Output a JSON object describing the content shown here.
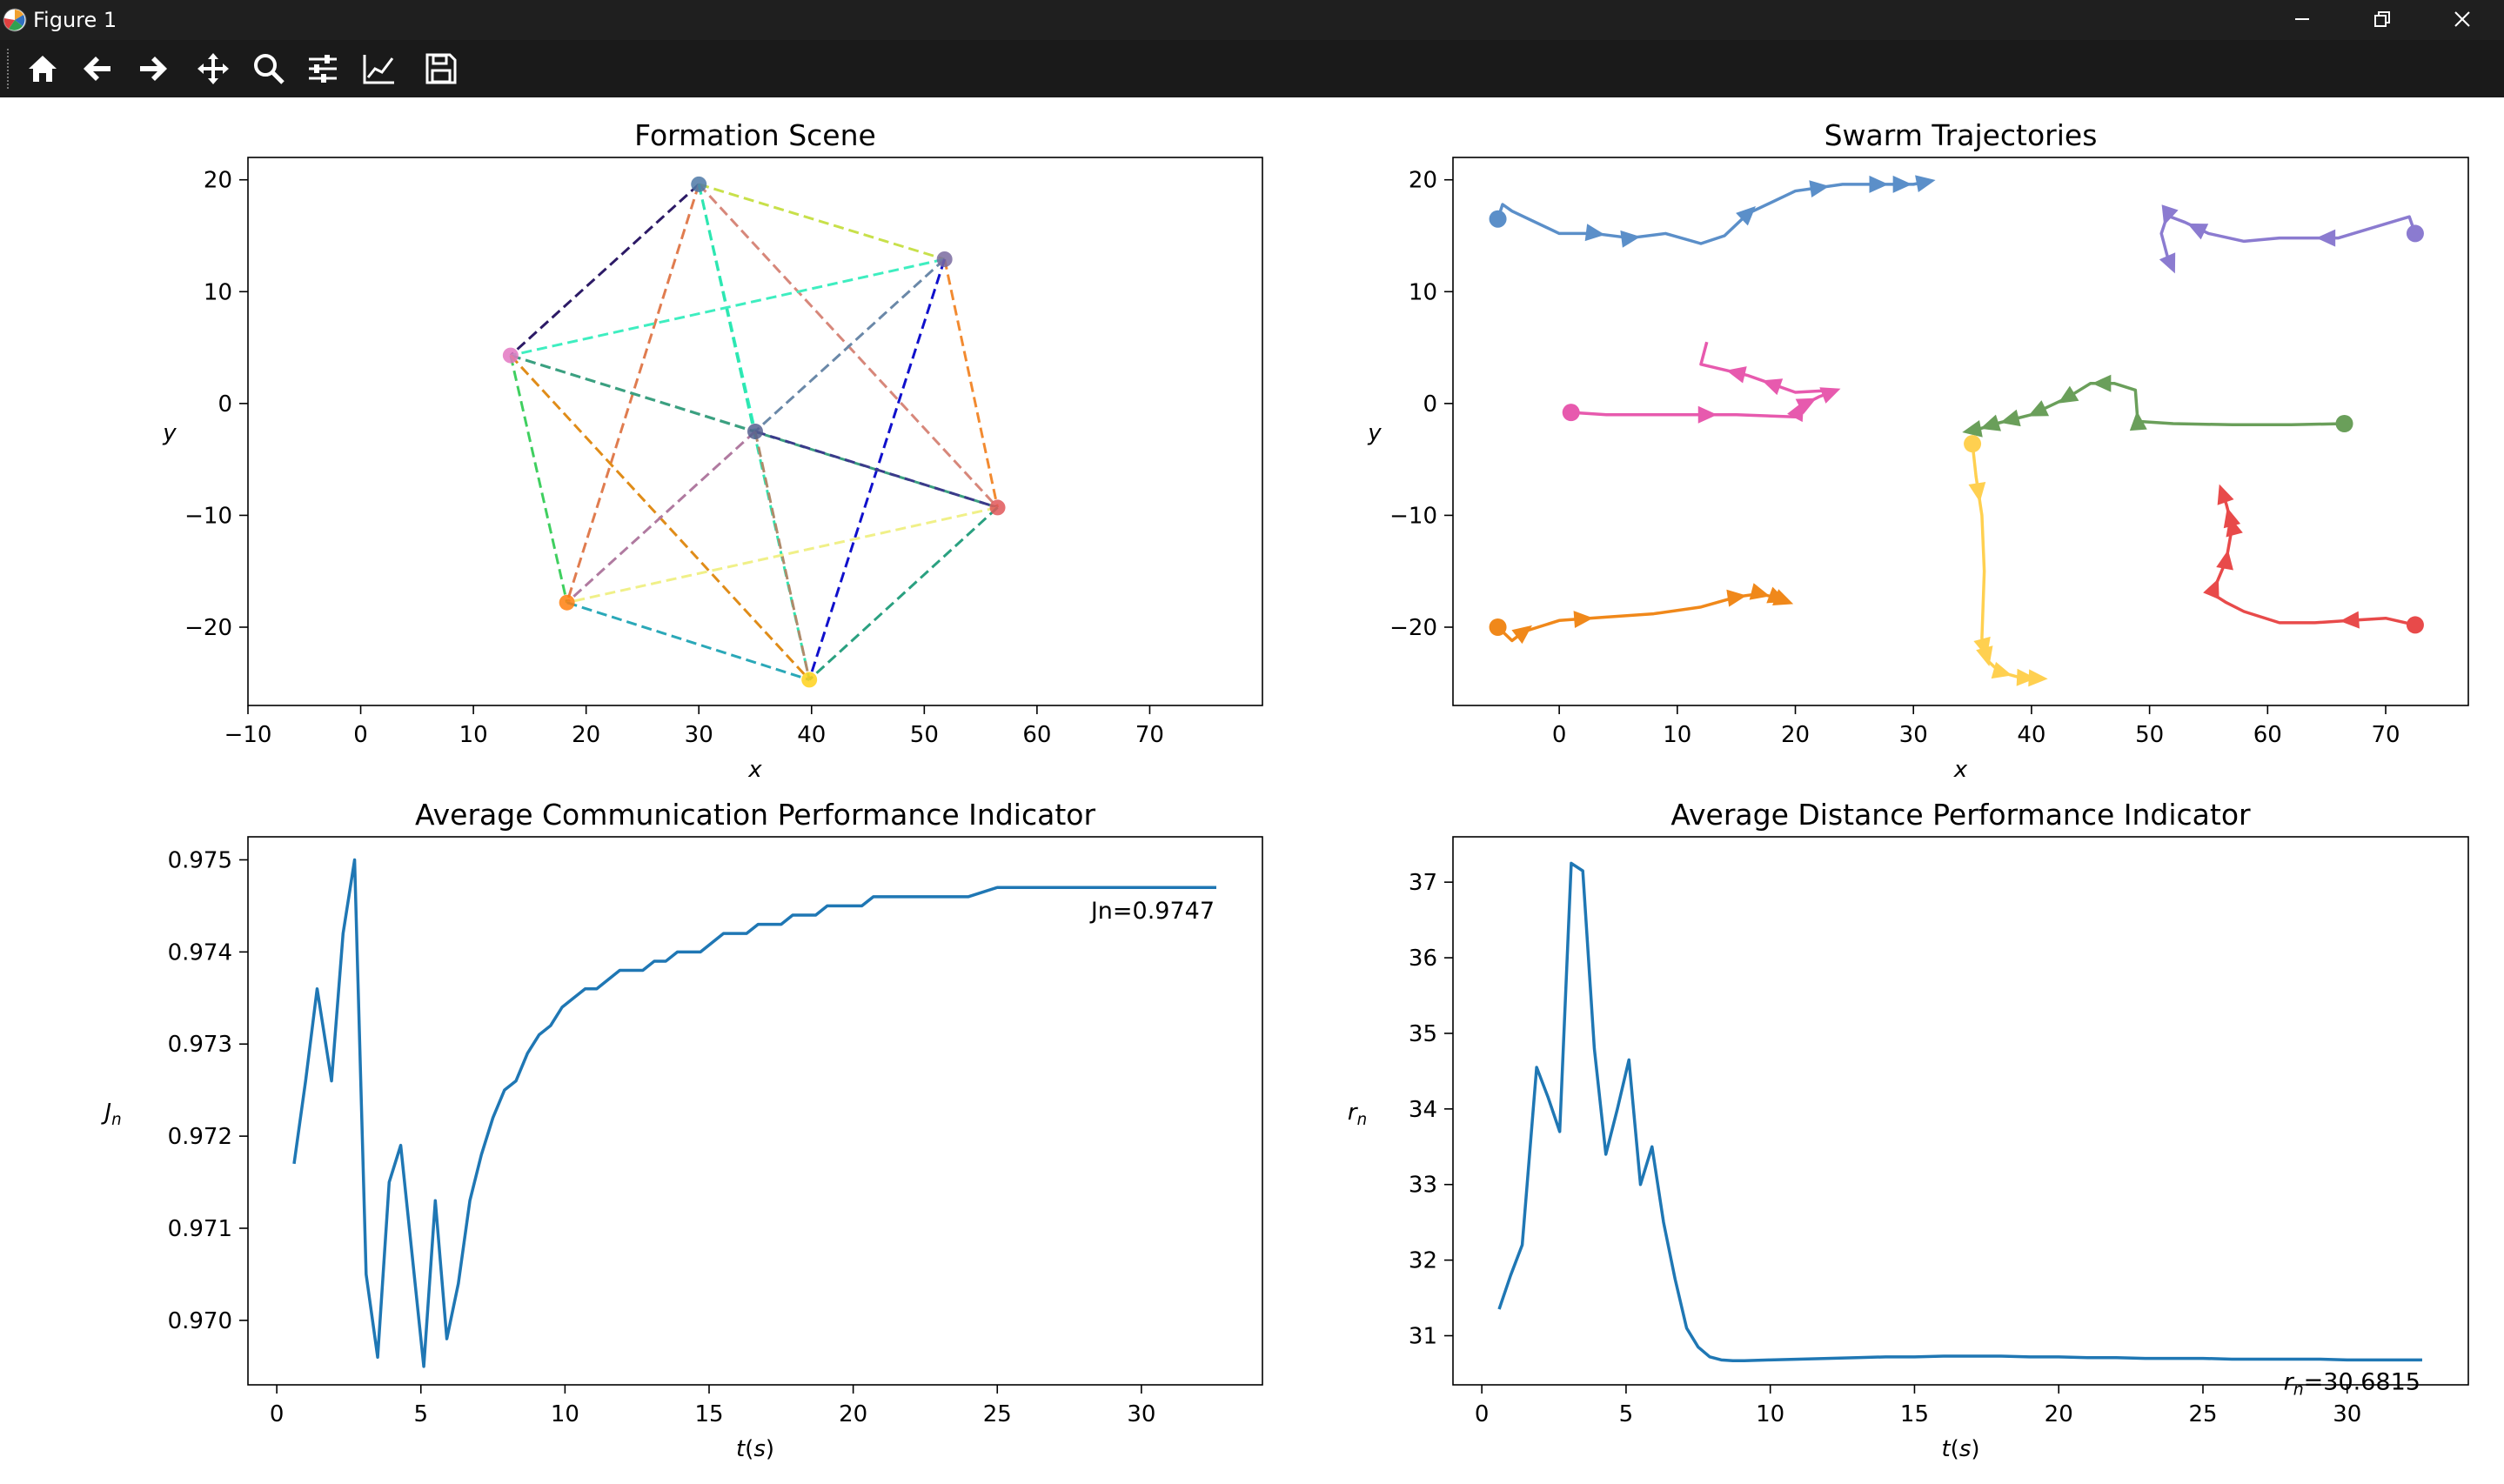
{
  "window": {
    "title": "Figure 1"
  },
  "toolbar": {
    "tools": [
      "home-icon",
      "back-arrow-icon",
      "forward-arrow-icon",
      "pan-move-icon",
      "zoom-magnifier-icon",
      "subplot-config-icon",
      "edit-axis-icon",
      "save-floppy-icon"
    ]
  },
  "colors": {
    "chrome_bg": "#1f1f1f",
    "toolbar_bg": "#1a1a1a",
    "line_blue": "#1f77b4"
  },
  "chart_data": [
    {
      "type": "network",
      "title": "Formation Scene",
      "xlabel": "x",
      "ylabel": "y",
      "xlim": [
        -10,
        80
      ],
      "ylim": [
        -27,
        22
      ],
      "xticks": [
        -10,
        0,
        10,
        20,
        30,
        40,
        50,
        60,
        70
      ],
      "yticks": [
        -20,
        -10,
        0,
        10,
        20
      ],
      "nodes": [
        {
          "x": 30,
          "y": 19.6,
          "color": "#4e79a7"
        },
        {
          "x": 51.8,
          "y": 12.9,
          "color": "#7a6ba0"
        },
        {
          "x": 13.3,
          "y": 4.3,
          "color": "#e377c2"
        },
        {
          "x": 35,
          "y": -2.5,
          "color": "#55608f"
        },
        {
          "x": 56.5,
          "y": -9.3,
          "color": "#e15759"
        },
        {
          "x": 18.3,
          "y": -17.8,
          "color": "#ff7f0e"
        },
        {
          "x": 39.8,
          "y": -24.7,
          "color": "#ffd11a"
        }
      ],
      "edges": [
        {
          "from": 0,
          "to": 2,
          "color": "#2c1a66"
        },
        {
          "from": 0,
          "to": 1,
          "color": "#c8e04a"
        },
        {
          "from": 0,
          "to": 3,
          "color": "#2ef0c0"
        },
        {
          "from": 0,
          "to": 4,
          "color": "#d7877a"
        },
        {
          "from": 0,
          "to": 5,
          "color": "#e07c4f"
        },
        {
          "from": 0,
          "to": 6,
          "color": "#2ee6b0"
        },
        {
          "from": 1,
          "to": 2,
          "color": "#3eeec0"
        },
        {
          "from": 1,
          "to": 3,
          "color": "#6a88a8"
        },
        {
          "from": 1,
          "to": 4,
          "color": "#f28a30"
        },
        {
          "from": 1,
          "to": 6,
          "color": "#1010cc"
        },
        {
          "from": 2,
          "to": 3,
          "color": "#7fb8a8"
        },
        {
          "from": 2,
          "to": 4,
          "color": "#3aa080"
        },
        {
          "from": 2,
          "to": 5,
          "color": "#3fcf5f"
        },
        {
          "from": 2,
          "to": 6,
          "color": "#e08c18"
        },
        {
          "from": 3,
          "to": 4,
          "color": "#3a3a8a"
        },
        {
          "from": 3,
          "to": 5,
          "color": "#b07aa0"
        },
        {
          "from": 3,
          "to": 6,
          "color": "#b08a6a"
        },
        {
          "from": 4,
          "to": 5,
          "color": "#f0f088"
        },
        {
          "from": 4,
          "to": 6,
          "color": "#2aa080"
        },
        {
          "from": 5,
          "to": 6,
          "color": "#2aa8b8"
        }
      ]
    },
    {
      "type": "line",
      "title": "Swarm Trajectories",
      "xlabel": "x",
      "ylabel": "y",
      "xlim": [
        -9,
        77
      ],
      "ylim": [
        -27,
        22
      ],
      "xticks": [
        0,
        10,
        20,
        30,
        40,
        50,
        60,
        70
      ],
      "yticks": [
        -20,
        -10,
        0,
        10,
        20
      ],
      "series": [
        {
          "color": "#5b8fc9",
          "x": [
            -5.2,
            -4.8,
            -4,
            0,
            3,
            6,
            9,
            12,
            14,
            16,
            20,
            24,
            28,
            30,
            31.5
          ],
          "y": [
            16.5,
            17.8,
            17.2,
            15.2,
            15.2,
            14.8,
            15.2,
            14.3,
            15,
            17,
            19,
            19.6,
            19.6,
            19.6,
            19.9
          ],
          "arrows": [
            3,
            6,
            16,
            22,
            27,
            29,
            31
          ]
        },
        {
          "color": "#8b7bd0",
          "x": [
            72.5,
            72,
            66,
            64,
            61,
            58,
            55,
            53,
            51.5,
            51,
            51.5,
            52
          ],
          "y": [
            15.2,
            16.7,
            14.8,
            14.8,
            14.8,
            14.5,
            15.2,
            16.2,
            16.8,
            15.2,
            13.2,
            12
          ],
          "arrows": [
            65,
            54,
            51.5,
            51.8
          ]
        },
        {
          "color": "#e75aae",
          "x": [
            1,
            4,
            10,
            15,
            20,
            20.5,
            22,
            23.5,
            20,
            16,
            12,
            12.5
          ],
          "y": [
            -0.8,
            -1,
            -1,
            -1,
            -1.2,
            -0.2,
            0.6,
            1.2,
            1,
            2.5,
            3.5,
            5.5
          ],
          "arrows": [
            20.3,
            21,
            23,
            18,
            15,
            12.5
          ]
        },
        {
          "color": "#f0881a",
          "x": [
            -5.2,
            -4,
            -3,
            0,
            4,
            8,
            12,
            15,
            17,
            18.5,
            19.5
          ],
          "y": [
            -20,
            -21.2,
            -20.4,
            -19.4,
            -19.1,
            -18.8,
            -18.2,
            -17.3,
            -17,
            -17.4,
            -17.8
          ],
          "arrows": [
            -3,
            2,
            15,
            17,
            18.5,
            19
          ]
        },
        {
          "color": "#e84a4a",
          "x": [
            72.5,
            70,
            67,
            64,
            61,
            58,
            56.5,
            55.3,
            56.5,
            57,
            56.5,
            56
          ],
          "y": [
            -19.8,
            -19.2,
            -19.4,
            -19.6,
            -19.6,
            -18.6,
            -17.8,
            -17,
            -14,
            -11,
            -9,
            -7.5
          ],
          "arrows": [
            67,
            55.5,
            56.5,
            57,
            56.8,
            56.2
          ]
        },
        {
          "color": "#6a9f5a",
          "x": [
            66.5,
            62,
            57,
            52,
            49,
            48.8,
            47,
            45,
            43,
            40,
            37,
            35.5,
            34.5
          ],
          "y": [
            -1.8,
            -1.9,
            -1.9,
            -1.8,
            -1.6,
            1.2,
            1.8,
            1.8,
            0.5,
            -1,
            -1.8,
            -2.3,
            -2.5
          ],
          "arrows": [
            49.2,
            46,
            43,
            40.5,
            38.2,
            36.5,
            35
          ]
        },
        {
          "color": "#ffd050",
          "x": [
            35,
            35.3,
            35.8,
            36,
            35.8,
            36.3,
            37.3,
            39,
            41
          ],
          "y": [
            -3.6,
            -6.5,
            -10,
            -15,
            -21,
            -23,
            -24,
            -24.5,
            -24.6
          ],
          "arrows": [
            35.5,
            36,
            36.2,
            37.5,
            39.5,
            40.5
          ]
        }
      ]
    },
    {
      "type": "line",
      "title": "Average Communication Performance Indicator",
      "xlabel": "t(s)",
      "ylabel": "Jn",
      "xlim": [
        -1,
        34.2
      ],
      "ylim": [
        0.9693,
        0.97525
      ],
      "xticks": [
        0,
        5,
        10,
        15,
        20,
        25,
        30
      ],
      "yticks": [
        0.97,
        0.971,
        0.972,
        0.973,
        0.974,
        0.975
      ],
      "annotation": "Jn=0.9747",
      "series": [
        {
          "color": "#1f77b4",
          "x": [
            0.6,
            1.0,
            1.4,
            1.9,
            2.3,
            2.7,
            3.1,
            3.5,
            3.9,
            4.3,
            4.7,
            5.1,
            5.5,
            5.9,
            6.3,
            6.7,
            7.1,
            7.5,
            7.9,
            8.3,
            8.7,
            9.1,
            9.5,
            9.9,
            10.3,
            10.7,
            11.1,
            11.5,
            11.9,
            12.3,
            12.7,
            13.1,
            13.5,
            13.9,
            14.3,
            14.7,
            15.1,
            15.5,
            15.9,
            16.3,
            16.7,
            17.1,
            17.5,
            17.9,
            18.3,
            18.7,
            19.1,
            19.5,
            19.9,
            20.3,
            20.7,
            21.1,
            22,
            23,
            24,
            25,
            26,
            27,
            28,
            29,
            30,
            31,
            32,
            32.6
          ],
          "y": [
            0.9717,
            0.9726,
            0.9736,
            0.9726,
            0.9742,
            0.975,
            0.9705,
            0.9696,
            0.9715,
            0.9719,
            0.9707,
            0.9695,
            0.9713,
            0.9698,
            0.9704,
            0.9713,
            0.9718,
            0.9722,
            0.9725,
            0.9726,
            0.9729,
            0.9731,
            0.9732,
            0.9734,
            0.9735,
            0.9736,
            0.9736,
            0.9737,
            0.9738,
            0.9738,
            0.9738,
            0.9739,
            0.9739,
            0.974,
            0.974,
            0.974,
            0.9741,
            0.9742,
            0.9742,
            0.9742,
            0.9743,
            0.9743,
            0.9743,
            0.9744,
            0.9744,
            0.9744,
            0.9745,
            0.9745,
            0.9745,
            0.9745,
            0.9746,
            0.9746,
            0.9746,
            0.9746,
            0.9746,
            0.9747,
            0.9747,
            0.9747,
            0.9747,
            0.9747,
            0.9747,
            0.9747,
            0.9747,
            0.9747
          ]
        }
      ]
    },
    {
      "type": "line",
      "title": "Average Distance Performance Indicator",
      "xlabel": "t(s)",
      "ylabel": "rn",
      "xlim": [
        -1,
        34.2
      ],
      "ylim": [
        30.35,
        37.6
      ],
      "xticks": [
        0,
        5,
        10,
        15,
        20,
        25,
        30
      ],
      "yticks": [
        31,
        32,
        33,
        34,
        35,
        36,
        37
      ],
      "annotation": "rn=30.6815",
      "series": [
        {
          "color": "#1f77b4",
          "x": [
            0.6,
            1.0,
            1.4,
            1.9,
            2.3,
            2.7,
            3.1,
            3.5,
            3.9,
            4.3,
            4.7,
            5.1,
            5.5,
            5.9,
            6.3,
            6.7,
            7.1,
            7.5,
            7.9,
            8.3,
            8.7,
            9.1,
            10,
            11,
            12,
            13,
            14,
            15,
            16,
            17,
            18,
            19,
            20,
            21,
            22,
            23,
            24,
            25,
            26,
            27,
            28,
            29,
            30,
            31,
            32,
            32.6
          ],
          "y": [
            31.35,
            31.8,
            32.2,
            34.55,
            34.15,
            33.7,
            37.25,
            37.15,
            34.8,
            33.4,
            34.0,
            34.65,
            33.0,
            33.5,
            32.5,
            31.75,
            31.1,
            30.85,
            30.72,
            30.68,
            30.67,
            30.67,
            30.68,
            30.69,
            30.7,
            30.71,
            30.72,
            30.72,
            30.73,
            30.73,
            30.73,
            30.72,
            30.72,
            30.71,
            30.71,
            30.7,
            30.7,
            30.7,
            30.69,
            30.69,
            30.69,
            30.69,
            30.68,
            30.68,
            30.68,
            30.68
          ]
        }
      ]
    }
  ]
}
